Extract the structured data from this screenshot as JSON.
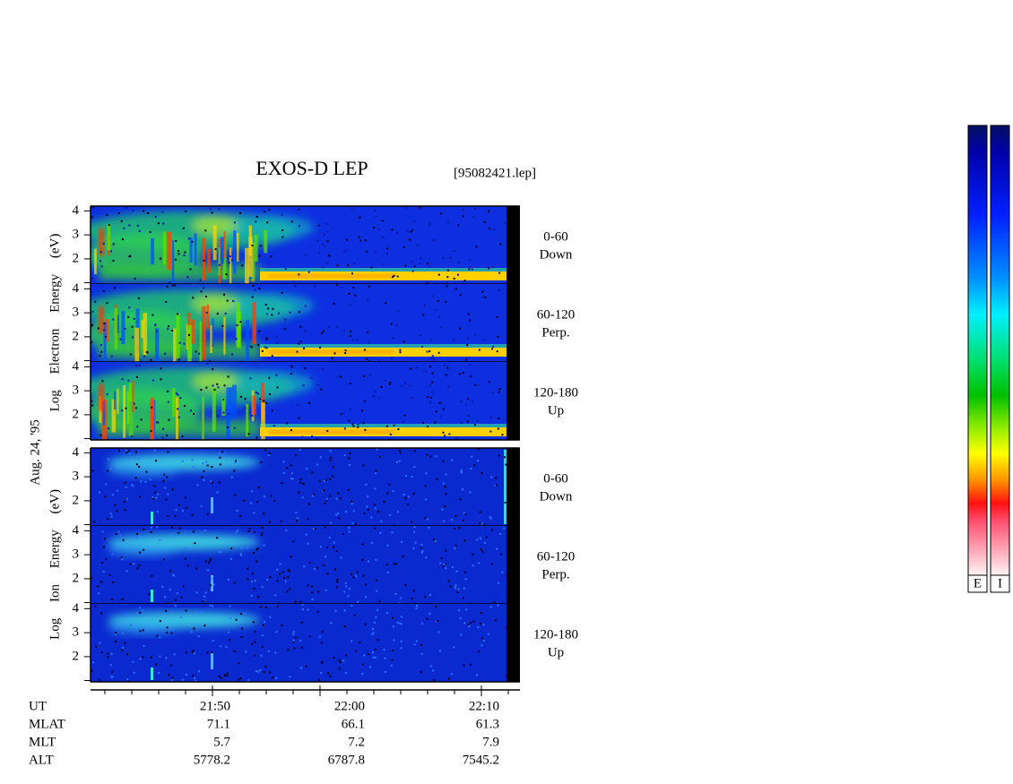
{
  "title": "EXOS-D LEP",
  "file": "[95082421.lep]",
  "date": "Aug. 24, '95",
  "ylim": [
    0.95,
    4.2
  ],
  "yticks": [
    2,
    3,
    4
  ],
  "groups": [
    {
      "ylabel": "Log Electron Energy (eV)",
      "panels": [
        {
          "angle": "0-60",
          "direction": "Down"
        },
        {
          "angle": "60-120",
          "direction": "Perp."
        },
        {
          "angle": "120-180",
          "direction": "Up"
        }
      ]
    },
    {
      "ylabel": "Log Ion Energy (eV)",
      "panels": [
        {
          "angle": "0-60",
          "direction": "Down"
        },
        {
          "angle": "60-120",
          "direction": "Perp."
        },
        {
          "angle": "120-180",
          "direction": "Up"
        }
      ]
    }
  ],
  "ephemeris": [
    {
      "label": "UT",
      "values": [
        "21:50",
        "22:00",
        "22:10"
      ]
    },
    {
      "label": "MLAT",
      "values": [
        71.1,
        66.1,
        61.3
      ]
    },
    {
      "label": "MLT",
      "values": [
        5.7,
        7.2,
        7.9
      ]
    },
    {
      "label": "ALT",
      "values": [
        5778.2,
        6787.8,
        7545.2
      ]
    }
  ],
  "colorbars": [
    "E",
    "I"
  ]
}
